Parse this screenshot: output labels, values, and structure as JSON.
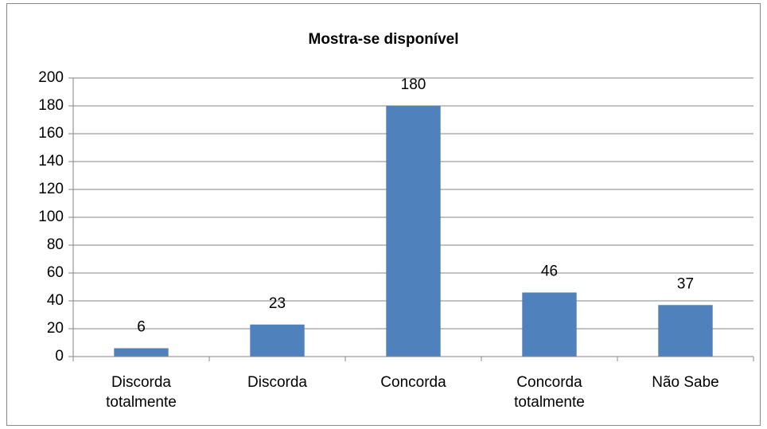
{
  "chart_data": {
    "type": "bar",
    "title": "Mostra-se disponível",
    "categories": [
      "Discorda totalmente",
      "Discorda",
      "Concorda",
      "Concorda totalmente",
      "Não Sabe"
    ],
    "values": [
      6,
      23,
      180,
      46,
      37
    ],
    "color": "#4f81bd",
    "ylim": [
      0,
      200
    ],
    "yticks": [
      0,
      20,
      40,
      60,
      80,
      100,
      120,
      140,
      160,
      180,
      200
    ],
    "grid": true
  }
}
